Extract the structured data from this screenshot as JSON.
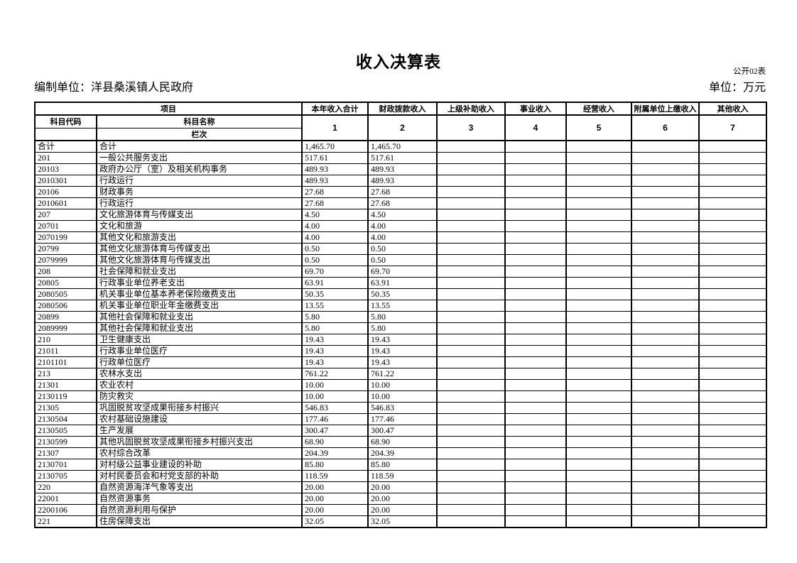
{
  "page": {
    "title": "收入决算表",
    "form_code": "公开02表",
    "prepared_by": "编制单位：洋县桑溪镇人民政府",
    "unit": "单位：万元"
  },
  "table": {
    "header": {
      "project": "项目",
      "subject_code": "科目代码",
      "subject_name": "科目名称",
      "lanci": "栏次",
      "columns": [
        "本年收入合计",
        "财政拨款收入",
        "上级补助收入",
        "事业收入",
        "经营收入",
        "附属单位上缴收入",
        "其他收入"
      ],
      "column_numbers": [
        "1",
        "2",
        "3",
        "4",
        "5",
        "6",
        "7"
      ]
    },
    "rows": [
      [
        "合计",
        "合计",
        "1,465.70",
        "1,465.70",
        "",
        "",
        "",
        "",
        ""
      ],
      [
        "201",
        "一般公共服务支出",
        "517.61",
        "517.61",
        "",
        "",
        "",
        "",
        ""
      ],
      [
        "20103",
        "政府办公厅（室）及相关机构事务",
        "489.93",
        "489.93",
        "",
        "",
        "",
        "",
        ""
      ],
      [
        "2010301",
        "行政运行",
        "489.93",
        "489.93",
        "",
        "",
        "",
        "",
        ""
      ],
      [
        "20106",
        "财政事务",
        "27.68",
        "27.68",
        "",
        "",
        "",
        "",
        ""
      ],
      [
        "2010601",
        "行政运行",
        "27.68",
        "27.68",
        "",
        "",
        "",
        "",
        ""
      ],
      [
        "207",
        "文化旅游体育与传媒支出",
        "4.50",
        "4.50",
        "",
        "",
        "",
        "",
        ""
      ],
      [
        "20701",
        "文化和旅游",
        "4.00",
        "4.00",
        "",
        "",
        "",
        "",
        ""
      ],
      [
        "2070199",
        "其他文化和旅游支出",
        "4.00",
        "4.00",
        "",
        "",
        "",
        "",
        ""
      ],
      [
        "20799",
        "其他文化旅游体育与传媒支出",
        "0.50",
        "0.50",
        "",
        "",
        "",
        "",
        ""
      ],
      [
        "2079999",
        "其他文化旅游体育与传媒支出",
        "0.50",
        "0.50",
        "",
        "",
        "",
        "",
        ""
      ],
      [
        "208",
        "社会保障和就业支出",
        "69.70",
        "69.70",
        "",
        "",
        "",
        "",
        ""
      ],
      [
        "20805",
        "行政事业单位养老支出",
        "63.91",
        "63.91",
        "",
        "",
        "",
        "",
        ""
      ],
      [
        "2080505",
        "机关事业单位基本养老保险缴费支出",
        "50.35",
        "50.35",
        "",
        "",
        "",
        "",
        ""
      ],
      [
        "2080506",
        "机关事业单位职业年金缴费支出",
        "13.55",
        "13.55",
        "",
        "",
        "",
        "",
        ""
      ],
      [
        "20899",
        "其他社会保障和就业支出",
        "5.80",
        "5.80",
        "",
        "",
        "",
        "",
        ""
      ],
      [
        "2089999",
        "其他社会保障和就业支出",
        "5.80",
        "5.80",
        "",
        "",
        "",
        "",
        ""
      ],
      [
        "210",
        "卫生健康支出",
        "19.43",
        "19.43",
        "",
        "",
        "",
        "",
        ""
      ],
      [
        "21011",
        "行政事业单位医疗",
        "19.43",
        "19.43",
        "",
        "",
        "",
        "",
        ""
      ],
      [
        "2101101",
        "行政单位医疗",
        "19.43",
        "19.43",
        "",
        "",
        "",
        "",
        ""
      ],
      [
        "213",
        "农林水支出",
        "761.22",
        "761.22",
        "",
        "",
        "",
        "",
        ""
      ],
      [
        "21301",
        "农业农村",
        "10.00",
        "10.00",
        "",
        "",
        "",
        "",
        ""
      ],
      [
        "2130119",
        "防灾救灾",
        "10.00",
        "10.00",
        "",
        "",
        "",
        "",
        ""
      ],
      [
        "21305",
        "巩固脱贫攻坚成果衔接乡村振兴",
        "546.83",
        "546.83",
        "",
        "",
        "",
        "",
        ""
      ],
      [
        "2130504",
        "农村基础设施建设",
        "177.46",
        "177.46",
        "",
        "",
        "",
        "",
        ""
      ],
      [
        "2130505",
        "生产发展",
        "300.47",
        "300.47",
        "",
        "",
        "",
        "",
        ""
      ],
      [
        "2130599",
        "其他巩固脱贫攻坚成果衔接乡村振兴支出",
        "68.90",
        "68.90",
        "",
        "",
        "",
        "",
        ""
      ],
      [
        "21307",
        "农村综合改革",
        "204.39",
        "204.39",
        "",
        "",
        "",
        "",
        ""
      ],
      [
        "2130701",
        "对村级公益事业建设的补助",
        "85.80",
        "85.80",
        "",
        "",
        "",
        "",
        ""
      ],
      [
        "2130705",
        "对村民委员会和村党支部的补助",
        "118.59",
        "118.59",
        "",
        "",
        "",
        "",
        ""
      ],
      [
        "220",
        "自然资源海洋气象等支出",
        "20.00",
        "20.00",
        "",
        "",
        "",
        "",
        ""
      ],
      [
        "22001",
        "自然资源事务",
        "20.00",
        "20.00",
        "",
        "",
        "",
        "",
        ""
      ],
      [
        "2200106",
        "自然资源利用与保护",
        "20.00",
        "20.00",
        "",
        "",
        "",
        "",
        ""
      ],
      [
        "221",
        "住房保障支出",
        "32.05",
        "32.05",
        "",
        "",
        "",
        "",
        ""
      ]
    ]
  }
}
